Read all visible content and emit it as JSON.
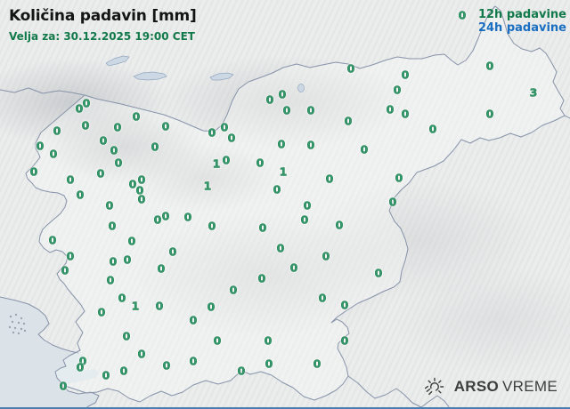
{
  "header": {
    "title": "Količina padavin [mm]",
    "subtitle": "Velja za: 30.12.2025 19:00 CET"
  },
  "legend": {
    "item_12h": "12h padavine",
    "item_24h": "24h padavine"
  },
  "logo": {
    "brand_bold": "ARSO",
    "brand_light": "VREME"
  },
  "colors": {
    "value_green": "#359a6b",
    "legend_green": "#12794a",
    "legend_blue": "#1a6fc0",
    "sea": "#dbe3e9",
    "border": "#8793a9",
    "bottom_bar": "#4d7fae"
  },
  "stations": [
    [
      97,
      116,
      "0"
    ],
    [
      89,
      122,
      "0"
    ],
    [
      153,
      131,
      "0"
    ],
    [
      186,
      142,
      "0"
    ],
    [
      96,
      141,
      "0"
    ],
    [
      64,
      147,
      "0"
    ],
    [
      132,
      143,
      "0"
    ],
    [
      116,
      158,
      "0"
    ],
    [
      174,
      165,
      "0"
    ],
    [
      45,
      164,
      "0"
    ],
    [
      128,
      169,
      "0"
    ],
    [
      60,
      173,
      "0"
    ],
    [
      133,
      183,
      "0"
    ],
    [
      394,
      77,
      "0"
    ],
    [
      317,
      106,
      "0"
    ],
    [
      303,
      112,
      "0"
    ],
    [
      322,
      124,
      "0"
    ],
    [
      349,
      124,
      "0"
    ],
    [
      391,
      136,
      "0"
    ],
    [
      252,
      143,
      "0"
    ],
    [
      238,
      149,
      "0"
    ],
    [
      260,
      155,
      "0"
    ],
    [
      316,
      162,
      "0"
    ],
    [
      349,
      163,
      "0"
    ],
    [
      409,
      168,
      "0"
    ],
    [
      519,
      17,
      "0"
    ],
    [
      550,
      74,
      "0"
    ],
    [
      455,
      84,
      "0"
    ],
    [
      446,
      101,
      "0"
    ],
    [
      599,
      104,
      "3"
    ],
    [
      438,
      123,
      "0"
    ],
    [
      455,
      128,
      "0"
    ],
    [
      550,
      128,
      "0"
    ],
    [
      486,
      145,
      "0"
    ],
    [
      38,
      193,
      "0"
    ],
    [
      79,
      202,
      "0"
    ],
    [
      113,
      195,
      "0"
    ],
    [
      159,
      202,
      "0"
    ],
    [
      149,
      207,
      "0"
    ],
    [
      157,
      214,
      "0"
    ],
    [
      159,
      224,
      "0"
    ],
    [
      90,
      219,
      "0"
    ],
    [
      123,
      231,
      "0"
    ],
    [
      186,
      243,
      "0"
    ],
    [
      177,
      247,
      "0"
    ],
    [
      126,
      254,
      "0"
    ],
    [
      59,
      270,
      "0"
    ],
    [
      148,
      271,
      "0"
    ],
    [
      79,
      288,
      "0"
    ],
    [
      194,
      283,
      "0"
    ],
    [
      127,
      294,
      "0"
    ],
    [
      143,
      292,
      "0"
    ],
    [
      181,
      302,
      "0"
    ],
    [
      73,
      304,
      "0"
    ],
    [
      124,
      315,
      "0"
    ],
    [
      243,
      184,
      "1"
    ],
    [
      254,
      180,
      "0"
    ],
    [
      292,
      183,
      "0"
    ],
    [
      318,
      193,
      "1"
    ],
    [
      233,
      209,
      "1"
    ],
    [
      311,
      213,
      "0"
    ],
    [
      370,
      201,
      "0"
    ],
    [
      345,
      231,
      "0"
    ],
    [
      342,
      247,
      "0"
    ],
    [
      211,
      244,
      "0"
    ],
    [
      238,
      254,
      "0"
    ],
    [
      295,
      256,
      "0"
    ],
    [
      381,
      253,
      "0"
    ],
    [
      315,
      279,
      "0"
    ],
    [
      330,
      301,
      "0"
    ],
    [
      366,
      288,
      "0"
    ],
    [
      294,
      313,
      "0"
    ],
    [
      425,
      307,
      "0"
    ],
    [
      448,
      200,
      "0"
    ],
    [
      441,
      227,
      "0"
    ],
    [
      262,
      326,
      "0"
    ],
    [
      137,
      335,
      "0"
    ],
    [
      152,
      344,
      "1"
    ],
    [
      179,
      344,
      "0"
    ],
    [
      114,
      351,
      "0"
    ],
    [
      237,
      345,
      "0"
    ],
    [
      217,
      360,
      "0"
    ],
    [
      142,
      378,
      "0"
    ],
    [
      244,
      383,
      "0"
    ],
    [
      301,
      383,
      "0"
    ],
    [
      159,
      398,
      "0"
    ],
    [
      187,
      411,
      "0"
    ],
    [
      217,
      406,
      "0"
    ],
    [
      302,
      409,
      "0"
    ],
    [
      93,
      406,
      "0"
    ],
    [
      90,
      413,
      "0"
    ],
    [
      119,
      422,
      "0"
    ],
    [
      139,
      417,
      "0"
    ],
    [
      71,
      434,
      "0"
    ],
    [
      271,
      417,
      "0"
    ],
    [
      362,
      335,
      "0"
    ],
    [
      387,
      343,
      "0"
    ],
    [
      387,
      383,
      "0"
    ],
    [
      356,
      409,
      "0"
    ]
  ]
}
